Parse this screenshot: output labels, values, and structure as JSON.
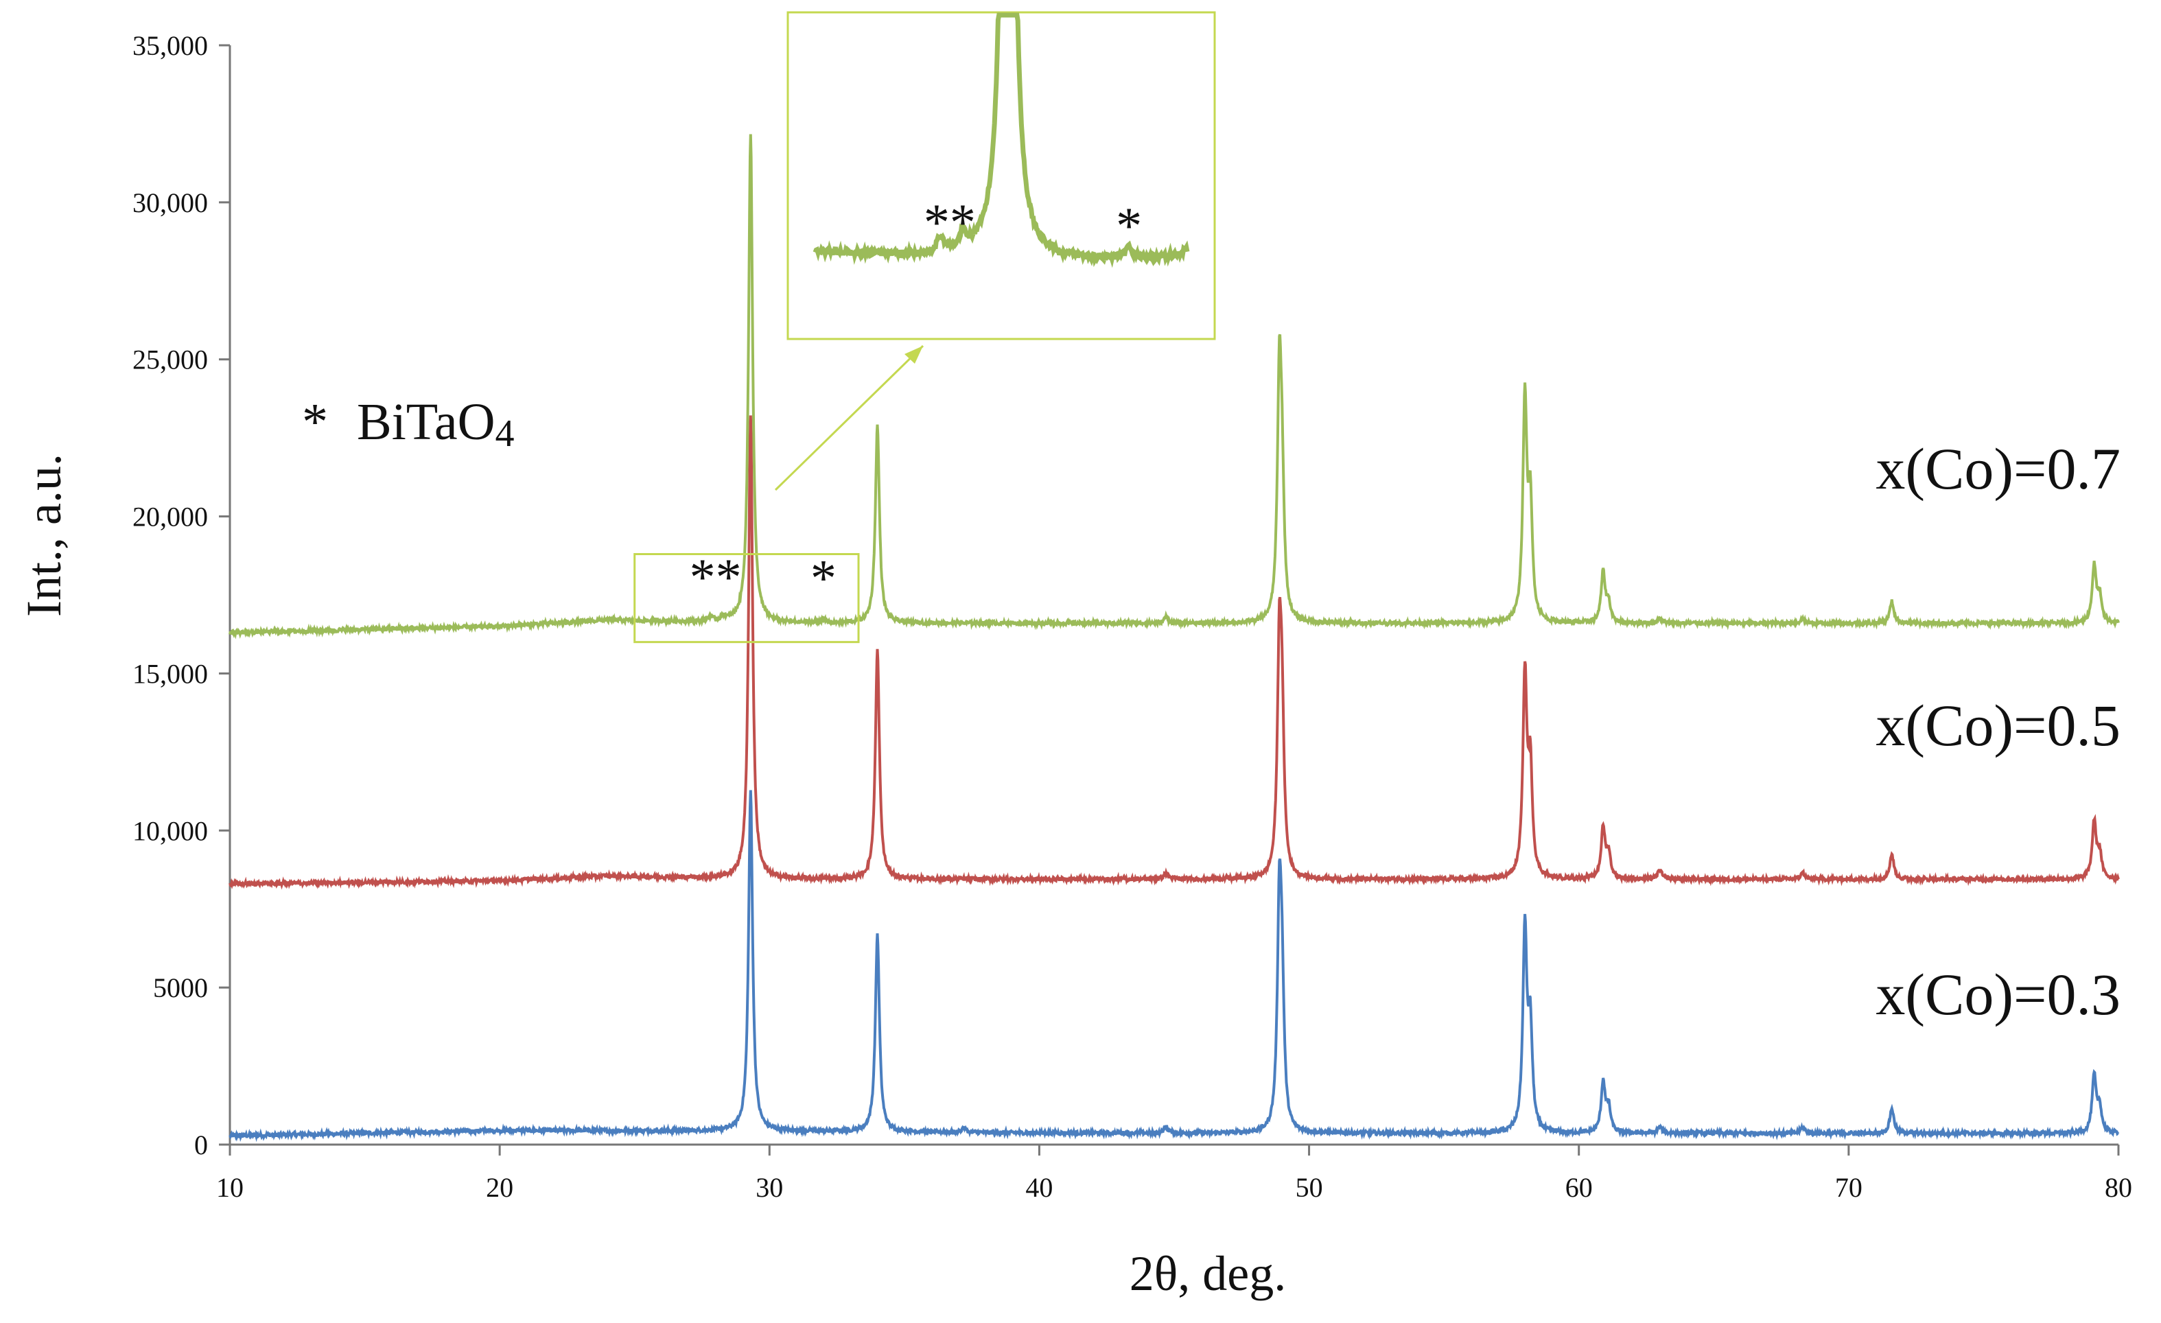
{
  "chart_data": {
    "type": "line",
    "title": "",
    "xlabel": "2θ, deg.",
    "ylabel": "Int., a.u.",
    "xlim": [
      10,
      80
    ],
    "ylim": [
      0,
      35000
    ],
    "x_ticks": [
      10,
      20,
      30,
      40,
      50,
      60,
      70,
      80
    ],
    "x_tick_labels": [
      "10",
      "20",
      "30",
      "40",
      "50",
      "60",
      "70",
      "80"
    ],
    "y_ticks": [
      0,
      5000,
      10000,
      15000,
      20000,
      25000,
      30000,
      35000
    ],
    "y_tick_labels": [
      "0",
      "5000",
      "10,000",
      "15,000",
      "20,000",
      "25,000",
      "30,000",
      "35,000"
    ],
    "grid": false,
    "legend_note": {
      "symbol": "*",
      "text": "BiTaO",
      "subscript": "4"
    },
    "series": [
      {
        "name": "x(Co)=0.3",
        "color": "#4a7ebf",
        "baseline_points": [
          [
            10,
            280
          ],
          [
            20,
            450
          ],
          [
            30,
            430
          ],
          [
            40,
            370
          ],
          [
            50,
            360
          ],
          [
            60,
            360
          ],
          [
            70,
            360
          ],
          [
            80,
            360
          ]
        ],
        "peaks": [
          [
            29.3,
            10800
          ],
          [
            34.0,
            6300
          ],
          [
            48.9,
            7000
          ],
          [
            49.0,
            3800
          ],
          [
            58.0,
            6400
          ],
          [
            58.2,
            3200
          ],
          [
            60.9,
            1600
          ],
          [
            61.1,
            800
          ],
          [
            63.0,
            200
          ],
          [
            68.3,
            200
          ],
          [
            71.6,
            800
          ],
          [
            79.1,
            1800
          ],
          [
            79.3,
            800
          ],
          [
            44.7,
            200
          ],
          [
            37.2,
            150
          ]
        ]
      },
      {
        "name": "x(Co)=0.5",
        "color": "#c0504d",
        "baseline_points": [
          [
            10,
            8300
          ],
          [
            20,
            8400
          ],
          [
            24,
            8550
          ],
          [
            30,
            8450
          ],
          [
            40,
            8450
          ],
          [
            50,
            8450
          ],
          [
            60,
            8450
          ],
          [
            70,
            8450
          ],
          [
            80,
            8450
          ]
        ],
        "peaks": [
          [
            29.3,
            14800
          ],
          [
            34.0,
            7300
          ],
          [
            48.9,
            7000
          ],
          [
            49.0,
            4200
          ],
          [
            58.0,
            6400
          ],
          [
            58.2,
            3400
          ],
          [
            60.9,
            1600
          ],
          [
            61.1,
            800
          ],
          [
            63.0,
            300
          ],
          [
            68.3,
            200
          ],
          [
            71.6,
            800
          ],
          [
            79.1,
            1800
          ],
          [
            79.3,
            800
          ],
          [
            44.7,
            200
          ]
        ]
      },
      {
        "name": "x(Co)=0.7",
        "color": "#9bbb59",
        "baseline_points": [
          [
            10,
            16300
          ],
          [
            20,
            16500
          ],
          [
            24,
            16700
          ],
          [
            30,
            16600
          ],
          [
            40,
            16600
          ],
          [
            50,
            16600
          ],
          [
            60,
            16600
          ],
          [
            70,
            16600
          ],
          [
            80,
            16600
          ]
        ],
        "peaks": [
          [
            29.3,
            15600
          ],
          [
            34.0,
            6300
          ],
          [
            48.9,
            7500
          ],
          [
            49.0,
            3600
          ],
          [
            58.0,
            7000
          ],
          [
            58.2,
            3600
          ],
          [
            60.9,
            1600
          ],
          [
            61.1,
            600
          ],
          [
            63.0,
            150
          ],
          [
            68.3,
            150
          ],
          [
            71.6,
            700
          ],
          [
            79.1,
            1800
          ],
          [
            79.3,
            800
          ],
          [
            44.7,
            200
          ],
          [
            27.8,
            150
          ],
          [
            28.3,
            150
          ],
          [
            32.0,
            100
          ]
        ]
      }
    ],
    "annotations": [
      {
        "text": "**",
        "target": "x(Co)=0.7",
        "x": 28.0
      },
      {
        "text": "*",
        "target": "x(Co)=0.7",
        "x": 32.0
      }
    ],
    "inset": {
      "description_label": "zoom",
      "x_range": [
        25,
        33.3
      ],
      "y_range": [
        16000,
        18800
      ],
      "stars": [
        {
          "text": "**",
          "x": 28.0
        },
        {
          "text": "*",
          "x": 32.0
        }
      ]
    }
  }
}
